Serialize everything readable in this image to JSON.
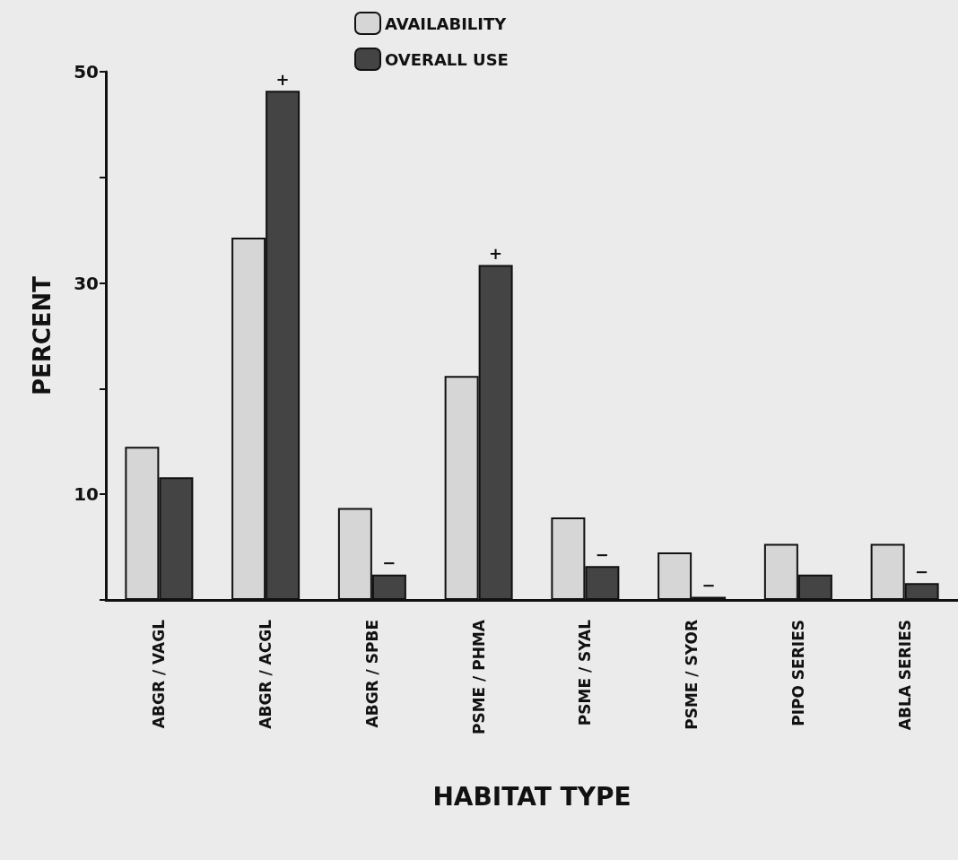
{
  "chart_data": {
    "type": "bar",
    "xlabel": "HABITAT TYPE",
    "ylabel": "PERCENT",
    "categories": [
      "ABGR / VAGL",
      "ABGR / ACGL",
      "ABGR / SPBE",
      "PSME / PHMA",
      "PSME / SYAL",
      "PSME / SYOR",
      "PIPO SERIES",
      "ABLA SERIES"
    ],
    "series": [
      {
        "name": "AVAILABILITY",
        "color": "#d6d6d6",
        "values": [
          14.5,
          34.3,
          8.7,
          21.2,
          7.8,
          4.5,
          5.3,
          5.3
        ]
      },
      {
        "name": "OVERALL USE",
        "color": "#444444",
        "values": [
          11.6,
          48.2,
          2.4,
          31.7,
          3.2,
          0.3,
          2.4,
          1.6
        ]
      }
    ],
    "annotations": [
      {
        "text": "+",
        "x": "ABGR / ACGL",
        "y": 48.2
      },
      {
        "text": "−",
        "x": "ABGR / SPBE",
        "y": 2.4
      },
      {
        "text": "+",
        "x": "PSME / PHMA",
        "y": 31.7
      },
      {
        "text": "−",
        "x": "PSME / SYAL",
        "y": 3.2
      },
      {
        "text": "−",
        "x": "PSME / SYOR",
        "y": 0.3
      },
      {
        "text": "−",
        "x": "ABLA SERIES",
        "y": 1.6
      }
    ],
    "ylim": [
      0,
      50
    ],
    "yticks": [
      {
        "value": 0,
        "label": null
      },
      10,
      {
        "value": 20,
        "label": null
      },
      30,
      {
        "value": 40,
        "label": null
      },
      50
    ],
    "grid": false,
    "legend": "top"
  }
}
